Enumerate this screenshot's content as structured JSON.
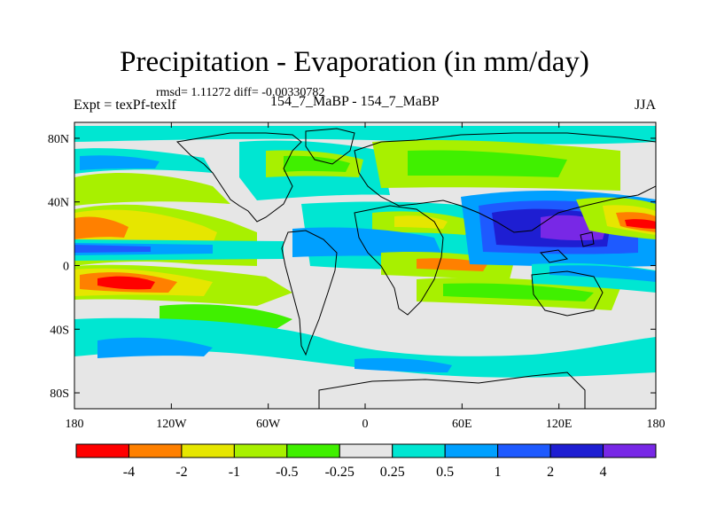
{
  "title": "Precipitation - Evaporation (in mm/day)",
  "stats": "rmsd= 1.11272 diff= -0.00330782",
  "experiment": "Expt = texPf-texlf",
  "center_label": "154_7_MaBP - 154_7_MaBP",
  "season": "JJA",
  "map": {
    "lon_range": [
      -180,
      180
    ],
    "lat_range": [
      -90,
      90
    ],
    "lon_ticks": [
      {
        "value": -180,
        "label": "180"
      },
      {
        "value": -120,
        "label": "120W"
      },
      {
        "value": -60,
        "label": "60W"
      },
      {
        "value": 0,
        "label": "0"
      },
      {
        "value": 60,
        "label": "60E"
      },
      {
        "value": 120,
        "label": "120E"
      },
      {
        "value": 180,
        "label": "180"
      }
    ],
    "lat_ticks": [
      {
        "value": 80,
        "label": "80N"
      },
      {
        "value": 40,
        "label": "40N"
      },
      {
        "value": 0,
        "label": "0"
      },
      {
        "value": -40,
        "label": "40S"
      },
      {
        "value": -80,
        "label": "80S"
      }
    ],
    "background_color": "#e6e6e6"
  },
  "colorbar": {
    "colors": [
      "#ff0000",
      "#ff8000",
      "#e6e600",
      "#a8f000",
      "#40f000",
      "#e6e6e6",
      "#00e6d2",
      "#00a0ff",
      "#1e5aff",
      "#1e1ed2",
      "#7828e6"
    ],
    "labels": [
      "-4",
      "-2",
      "-1",
      "-0.5",
      "-0.25",
      "0.25",
      "0.5",
      "1",
      "2",
      "4"
    ]
  }
}
